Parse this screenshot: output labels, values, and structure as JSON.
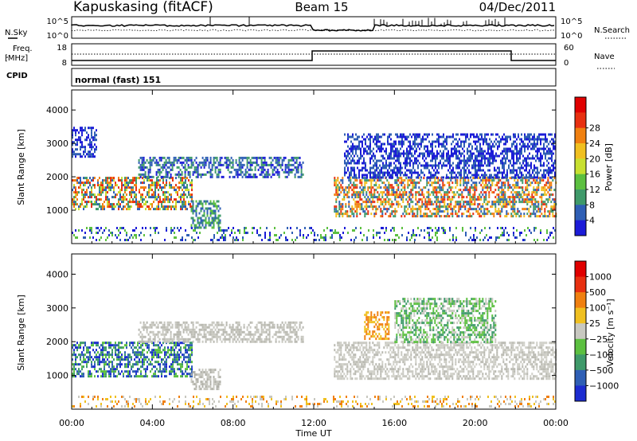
{
  "header": {
    "station": "Kapuskasing (fitACF)",
    "beam": "Beam 15",
    "date": "04/Dec/2011"
  },
  "top_panels": {
    "nsky_label": "N.Sky",
    "nsearch_label": "N.Search",
    "nsky_ticks": [
      "10^5",
      "10^0"
    ],
    "nsearch_ticks": [
      "10^5",
      "10^0"
    ],
    "freq_label_1": "Freq.",
    "freq_label_2": "[MHz]",
    "freq_ticks": [
      "18",
      "8"
    ],
    "nave_label": "Nave",
    "nave_ticks": [
      "60",
      "0"
    ],
    "cpid_label": "CPID",
    "cpid_value": "normal (fast) 151"
  },
  "chart_data": [
    {
      "type": "heatmap",
      "name": "power",
      "ylabel": "Slant Range [km]",
      "yticks": [
        "1000",
        "2000",
        "3000",
        "4000"
      ],
      "ylim": [
        0,
        4600
      ],
      "xlim_hours": [
        0,
        24
      ],
      "colorbar": {
        "label": "Power [dB]",
        "ticks": [
          "4",
          "8",
          "12",
          "16",
          "20",
          "24",
          "28"
        ],
        "colors": [
          "#1c1cd8",
          "#2f5fb5",
          "#3f9a6a",
          "#5cc040",
          "#c8e030",
          "#f0c020",
          "#f08010",
          "#e83010",
          "#e00000"
        ]
      },
      "regions": [
        {
          "t0": 0.0,
          "t1": 6.0,
          "r0": 1000,
          "r1": 2000,
          "colors": [
            "#3f9a6a",
            "#c8e030",
            "#f08010",
            "#e83010",
            "#2f5fb5"
          ]
        },
        {
          "t0": 0.0,
          "t1": 1.2,
          "r0": 2600,
          "r1": 3500,
          "colors": [
            "#1c1cd8",
            "#2f5fb5"
          ]
        },
        {
          "t0": 3.3,
          "t1": 11.5,
          "r0": 2000,
          "r1": 2600,
          "colors": [
            "#1c1cd8",
            "#2f5fb5",
            "#3f9a6a"
          ]
        },
        {
          "t0": 5.9,
          "t1": 7.4,
          "r0": 500,
          "r1": 1300,
          "colors": [
            "#3f9a6a",
            "#5cc040",
            "#2f5fb5"
          ]
        },
        {
          "t0": 13.0,
          "t1": 24.0,
          "r0": 800,
          "r1": 2000,
          "colors": [
            "#2f5fb5",
            "#3f9a6a",
            "#f0c020",
            "#f08010",
            "#e83010"
          ]
        },
        {
          "t0": 13.5,
          "t1": 24.0,
          "r0": 2000,
          "r1": 3300,
          "colors": [
            "#1c1cd8",
            "#2f5fb5"
          ]
        },
        {
          "t0": 0.0,
          "t1": 24.0,
          "r0": 100,
          "r1": 500,
          "colors": [
            "#1c1cd8",
            "#2f5fb5",
            "#5cc040"
          ]
        }
      ]
    },
    {
      "type": "heatmap",
      "name": "velocity",
      "ylabel": "Slant Range [km]",
      "yticks": [
        "1000",
        "2000",
        "3000",
        "4000"
      ],
      "ylim": [
        0,
        4600
      ],
      "xlim_hours": [
        0,
        24
      ],
      "xticks": [
        "00:00",
        "04:00",
        "08:00",
        "12:00",
        "16:00",
        "20:00",
        "00:00"
      ],
      "xlabel": "Time UT",
      "colorbar": {
        "label": "Velocity [m s⁻¹]",
        "ticks": [
          "1000",
          "500",
          "100",
          "25",
          "−25",
          "−100",
          "−500",
          "−1000"
        ],
        "colors": [
          "#1c2cd0",
          "#2f5fb5",
          "#3f9a6a",
          "#5cc040",
          "#c8c8c0",
          "#f0c020",
          "#f08010",
          "#e83010",
          "#e00000"
        ]
      },
      "regions": [
        {
          "t0": 0.0,
          "t1": 6.0,
          "r0": 1000,
          "r1": 2000,
          "colors": [
            "#3f9a6a",
            "#2f5fb5",
            "#5cc040",
            "#1c2cd0"
          ]
        },
        {
          "t0": 3.3,
          "t1": 11.5,
          "r0": 2000,
          "r1": 2600,
          "colors": [
            "#c8c8c0",
            "#b8b8b0"
          ]
        },
        {
          "t0": 5.9,
          "t1": 7.4,
          "r0": 600,
          "r1": 1200,
          "colors": [
            "#c8c8c0",
            "#b0b0a8"
          ]
        },
        {
          "t0": 13.0,
          "t1": 24.0,
          "r0": 900,
          "r1": 2000,
          "colors": [
            "#c8c8c0",
            "#b8b8b0",
            "#d0d0c8"
          ]
        },
        {
          "t0": 14.5,
          "t1": 15.7,
          "r0": 2100,
          "r1": 2900,
          "colors": [
            "#f08010",
            "#f0c020"
          ]
        },
        {
          "t0": 16.0,
          "t1": 21.0,
          "r0": 2000,
          "r1": 3300,
          "colors": [
            "#3f9a6a",
            "#5cc040",
            "#c8c8c0"
          ]
        },
        {
          "t0": 0.0,
          "t1": 24.0,
          "r0": 50,
          "r1": 400,
          "colors": [
            "#f0c020",
            "#f08010",
            "#c8c8c0"
          ]
        }
      ]
    }
  ]
}
